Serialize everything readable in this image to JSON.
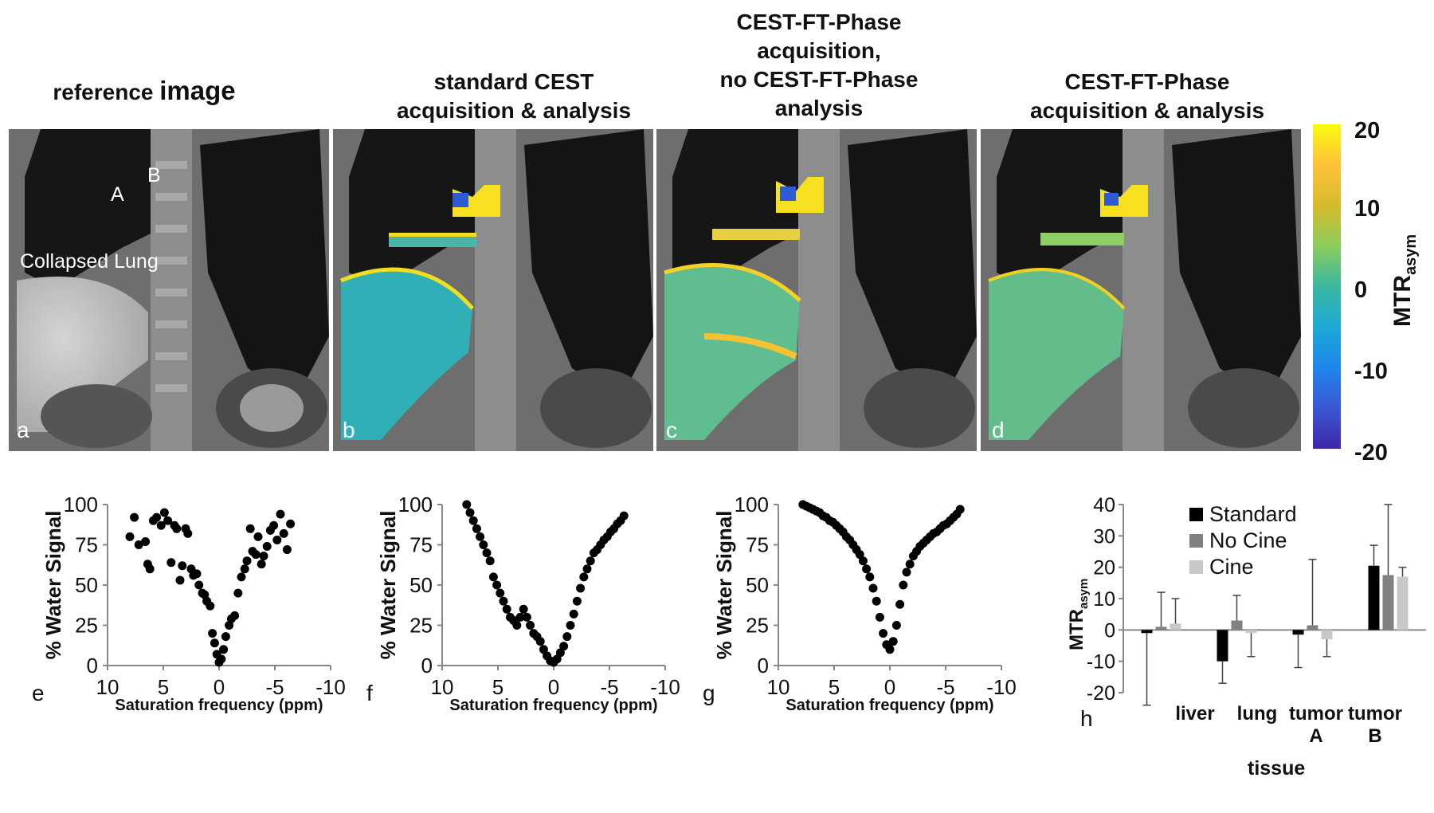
{
  "titles": {
    "a": {
      "line1": "reference",
      "line1b": "image"
    },
    "b": {
      "line1": "standard CEST",
      "line2": "acquisition & analysis"
    },
    "c": {
      "line1": "CEST-FT-Phase",
      "line2": "acquisition,",
      "line3": "no CEST-FT-Phase",
      "line4": "analysis"
    },
    "d": {
      "line1": "CEST-FT-Phase",
      "line2": "acquisition & analysis"
    }
  },
  "panels": {
    "a": {
      "label": "a",
      "annot_A": "A",
      "annot_B": "B",
      "annot_lung": "Collapsed Lung"
    },
    "b": {
      "label": "b"
    },
    "c": {
      "label": "c"
    },
    "d": {
      "label": "d"
    }
  },
  "colorbar": {
    "ticks": [
      "20",
      "10",
      "0",
      "-10",
      "-20"
    ],
    "label_main": "MTR",
    "label_sub": "asym",
    "colors": [
      "#f9fb0e",
      "#fec23a",
      "#8ccc5c",
      "#1ea8d5",
      "#3e26a8"
    ]
  },
  "scatter_common": {
    "ylabel": "% Water Signal",
    "xlabel": "Saturation frequency (ppm)",
    "yticks": [
      "100",
      "75",
      "50",
      "25",
      "0"
    ],
    "xticks": [
      "10",
      "5",
      "0",
      "-5",
      "-10"
    ]
  },
  "bar_panel": {
    "label": "h",
    "yticks": [
      "40",
      "30",
      "20",
      "10",
      "0",
      "-10",
      "-20"
    ],
    "ylabel_main": "MTR",
    "ylabel_sub": "asym",
    "xlabel": "tissue",
    "categories": [
      {
        "line1": "liver",
        "line2": ""
      },
      {
        "line1": "lung",
        "line2": ""
      },
      {
        "line1": "tumor",
        "line2": "A"
      },
      {
        "line1": "tumor",
        "line2": "B"
      }
    ],
    "legend": [
      "Standard",
      "No Cine",
      "Cine"
    ],
    "colors": [
      "#000000",
      "#808080",
      "#c8c8c8"
    ]
  },
  "chart_data": [
    {
      "type": "scatter",
      "panel": "e",
      "title": "",
      "xlabel": "Saturation frequency (ppm)",
      "ylabel": "% Water Signal",
      "xlim": [
        10,
        -10
      ],
      "ylim": [
        0,
        100
      ],
      "x": [
        8,
        7.6,
        7.2,
        6.6,
        6.4,
        6.2,
        5.9,
        5.6,
        5.2,
        4.9,
        4.6,
        4.3,
        4.0,
        3.8,
        3.5,
        3.3,
        3.0,
        2.8,
        2.5,
        2.3,
        2.0,
        1.8,
        1.5,
        1.3,
        1.1,
        0.8,
        0.6,
        0.4,
        0.2,
        0,
        -0.2,
        -0.4,
        -0.6,
        -0.9,
        -1.1,
        -1.4,
        -1.7,
        -2.0,
        -2.3,
        -2.5,
        -2.8,
        -3.0,
        -3.3,
        -3.5,
        -3.8,
        -4.0,
        -4.3,
        -4.6,
        -4.9,
        -5.2,
        -5.5,
        -5.8,
        -6.1,
        -6.4
      ],
      "y": [
        80,
        92,
        75,
        77,
        63,
        60,
        90,
        92,
        87,
        95,
        90,
        64,
        87,
        85,
        53,
        62,
        85,
        82,
        60,
        56,
        57,
        50,
        45,
        44,
        40,
        37,
        20,
        14,
        7,
        2,
        4,
        10,
        18,
        25,
        29,
        31,
        45,
        55,
        60,
        65,
        85,
        71,
        69,
        80,
        63,
        68,
        74,
        84,
        87,
        78,
        94,
        82,
        72,
        88
      ]
    },
    {
      "type": "scatter",
      "panel": "f",
      "title": "",
      "xlabel": "Saturation frequency (ppm)",
      "ylabel": "% Water Signal",
      "xlim": [
        10,
        -10
      ],
      "ylim": [
        0,
        100
      ],
      "x": [
        7.8,
        7.5,
        7.2,
        6.9,
        6.6,
        6.3,
        6.0,
        5.7,
        5.4,
        5.1,
        4.8,
        4.5,
        4.2,
        3.9,
        3.6,
        3.3,
        3.0,
        2.7,
        2.4,
        2.1,
        1.8,
        1.5,
        1.2,
        0.9,
        0.6,
        0.3,
        0,
        -0.3,
        -0.6,
        -0.9,
        -1.2,
        -1.5,
        -1.8,
        -2.1,
        -2.4,
        -2.7,
        -3.0,
        -3.3,
        -3.6,
        -3.9,
        -4.2,
        -4.5,
        -4.8,
        -5.1,
        -5.4,
        -5.7,
        -6.0,
        -6.3
      ],
      "y": [
        100,
        95,
        90,
        85,
        80,
        75,
        70,
        65,
        55,
        50,
        45,
        40,
        35,
        30,
        28,
        25,
        30,
        35,
        30,
        25,
        20,
        18,
        15,
        10,
        6,
        3,
        2,
        4,
        8,
        12,
        18,
        25,
        32,
        40,
        48,
        55,
        60,
        65,
        70,
        72,
        75,
        78,
        80,
        83,
        85,
        88,
        90,
        93
      ]
    },
    {
      "type": "scatter",
      "panel": "g",
      "title": "",
      "xlabel": "Saturation frequency (ppm)",
      "ylabel": "% Water Signal",
      "xlim": [
        10,
        -10
      ],
      "ylim": [
        0,
        100
      ],
      "x": [
        7.8,
        7.5,
        7.2,
        6.9,
        6.6,
        6.3,
        6.0,
        5.7,
        5.4,
        5.1,
        4.8,
        4.5,
        4.2,
        3.9,
        3.6,
        3.3,
        3.0,
        2.7,
        2.4,
        2.1,
        1.8,
        1.5,
        1.2,
        0.9,
        0.6,
        0.3,
        0,
        -0.3,
        -0.6,
        -0.9,
        -1.2,
        -1.5,
        -1.8,
        -2.1,
        -2.4,
        -2.7,
        -3.0,
        -3.3,
        -3.6,
        -3.9,
        -4.2,
        -4.5,
        -4.8,
        -5.1,
        -5.4,
        -5.7,
        -6.0,
        -6.3
      ],
      "y": [
        100,
        99,
        98,
        97,
        96,
        95,
        93,
        92,
        90,
        89,
        87,
        85,
        83,
        80,
        78,
        75,
        72,
        69,
        65,
        60,
        55,
        48,
        40,
        30,
        20,
        13,
        10,
        15,
        25,
        38,
        50,
        58,
        63,
        68,
        71,
        74,
        76,
        78,
        80,
        82,
        83,
        85,
        87,
        88,
        90,
        92,
        94,
        97
      ]
    },
    {
      "type": "bar",
      "panel": "h",
      "title": "",
      "xlabel": "tissue",
      "ylabel": "MTRasym",
      "categories": [
        "liver",
        "lung",
        "tumor A",
        "tumor B"
      ],
      "ylim": [
        -20,
        40
      ],
      "series": [
        {
          "name": "Standard",
          "values": [
            -1,
            -10,
            -1.5,
            20.5
          ],
          "errors": [
            23,
            7,
            10.5,
            6.5
          ]
        },
        {
          "name": "No Cine",
          "values": [
            1,
            3,
            1.5,
            17.5
          ],
          "errors": [
            11,
            8,
            21,
            22.5
          ]
        },
        {
          "name": "Cine",
          "values": [
            2,
            -1,
            -3,
            17
          ],
          "errors": [
            8,
            7.5,
            5.5,
            3
          ]
        }
      ]
    }
  ]
}
